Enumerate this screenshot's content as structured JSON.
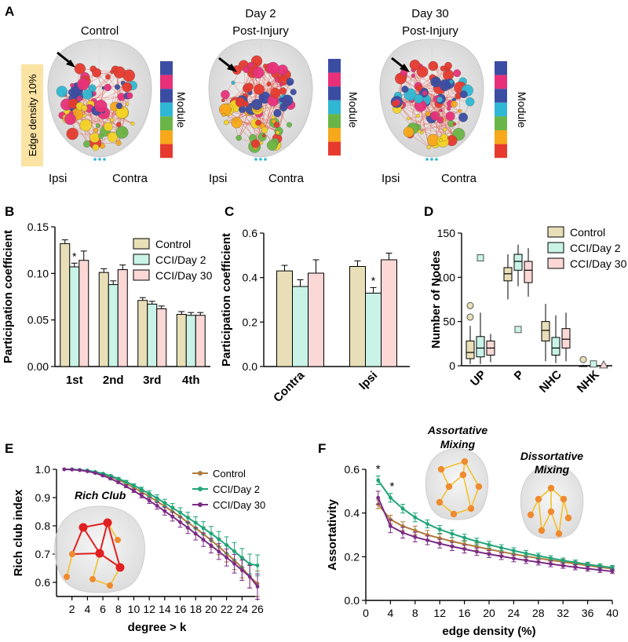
{
  "colors": {
    "control": "#e8dfb8",
    "cci_day2": "#c9f3e6",
    "cci_day30": "#fbd7d6",
    "control_line": "#b07a3a",
    "cci_day2_line": "#1fa57a",
    "cci_day30_line": "#7b2b86",
    "module": [
      "#e63a2e",
      "#f7a81b",
      "#f3d324",
      "#6ab547",
      "#2fb7d3",
      "#3b4ca3",
      "#e8307a"
    ],
    "edge_density_box": "#fbe3a3"
  },
  "panel_a": {
    "panel_label": "A",
    "title_control": "Control",
    "title_day2_line1": "Day 2",
    "title_day2_line2": "Post-Injury",
    "title_day30_line1": "Day 30",
    "title_day30_line2": "Post-Injury",
    "edge_density_label": "Edge density 10%",
    "module_label": "Module",
    "ipsi_label": "Ipsi",
    "contra_label": "Contra"
  },
  "chart_data": [
    {
      "panel": "B",
      "type": "bar",
      "ylabel": "Participation coefficient",
      "ylim": [
        0,
        0.15
      ],
      "yticks": [
        "0.00",
        "0.05",
        "0.10",
        "0.15"
      ],
      "categories": [
        "1st",
        "2nd",
        "3rd",
        "4th"
      ],
      "series": [
        {
          "name": "Control",
          "values": [
            0.132,
            0.101,
            0.071,
            0.056
          ],
          "errors": [
            0.004,
            0.004,
            0.003,
            0.003
          ]
        },
        {
          "name": "CCI/Day 2",
          "values": [
            0.107,
            0.088,
            0.067,
            0.055
          ],
          "errors": [
            0.004,
            0.004,
            0.003,
            0.003
          ]
        },
        {
          "name": "CCI/Day 30",
          "values": [
            0.114,
            0.104,
            0.062,
            0.055
          ],
          "errors": [
            0.01,
            0.005,
            0.003,
            0.003
          ]
        }
      ],
      "annotations": [
        {
          "text": "*",
          "category": "1st",
          "series": "CCI/Day 2"
        }
      ],
      "legend": "top-right"
    },
    {
      "panel": "C",
      "type": "bar",
      "ylabel": "Participation coefficient",
      "ylim": [
        0,
        0.6
      ],
      "yticks": [
        "0.0",
        "0.2",
        "0.4",
        "0.6"
      ],
      "categories": [
        "Contra",
        "Ipsi"
      ],
      "series": [
        {
          "name": "Control",
          "values": [
            0.43,
            0.45
          ],
          "errors": [
            0.025,
            0.025
          ]
        },
        {
          "name": "CCI/Day 2",
          "values": [
            0.36,
            0.33
          ],
          "errors": [
            0.03,
            0.025
          ]
        },
        {
          "name": "CCI/Day 30",
          "values": [
            0.42,
            0.48
          ],
          "errors": [
            0.06,
            0.03
          ]
        }
      ],
      "annotations": [
        {
          "text": "*",
          "category": "Ipsi",
          "series": "CCI/Day 2"
        }
      ]
    },
    {
      "panel": "D",
      "type": "box",
      "ylabel": "Number of Nodes",
      "ylim": [
        0,
        150
      ],
      "yticks": [
        "0",
        "50",
        "100",
        "150"
      ],
      "categories": [
        "UP",
        "P",
        "NHC",
        "NHK"
      ],
      "series": [
        {
          "name": "Control",
          "boxes": [
            {
              "min": 2,
              "q1": 8,
              "median": 15,
              "q3": 28,
              "max": 45,
              "outliers": [
                55,
                68
              ]
            },
            {
              "min": 75,
              "q1": 96,
              "median": 104,
              "q3": 111,
              "max": 126,
              "outliers": []
            },
            {
              "min": 5,
              "q1": 28,
              "median": 40,
              "q3": 50,
              "max": 70,
              "outliers": []
            },
            {
              "min": 0,
              "q1": 0,
              "median": 0,
              "q3": 0,
              "max": 1,
              "outliers": [
                7
              ]
            }
          ]
        },
        {
          "name": "CCI/Day 2",
          "boxes": [
            {
              "min": 2,
              "q1": 10,
              "median": 20,
              "q3": 33,
              "max": 60,
              "outliers": [
                122
              ]
            },
            {
              "min": 90,
              "q1": 108,
              "median": 118,
              "q3": 126,
              "max": 137,
              "outliers": [
                41
              ]
            },
            {
              "min": 3,
              "q1": 12,
              "median": 20,
              "q3": 32,
              "max": 57,
              "outliers": []
            },
            {
              "min": 0,
              "q1": 0,
              "median": 0,
              "q3": 0,
              "max": 0,
              "outliers": [
                2
              ]
            }
          ]
        },
        {
          "name": "CCI/Day 30",
          "boxes": [
            {
              "min": 4,
              "q1": 12,
              "median": 20,
              "q3": 28,
              "max": 36,
              "outliers": []
            },
            {
              "min": 78,
              "q1": 94,
              "median": 108,
              "q3": 118,
              "max": 133,
              "outliers": []
            },
            {
              "min": 5,
              "q1": 20,
              "median": 30,
              "q3": 42,
              "max": 60,
              "outliers": []
            },
            {
              "min": 0,
              "q1": 0,
              "median": 0,
              "q3": 0,
              "max": 1,
              "outliers": [
                1
              ]
            }
          ]
        }
      ],
      "legend": "top-right"
    },
    {
      "panel": "E",
      "type": "line",
      "xlabel": "degree  > k",
      "ylabel": "Rich club index",
      "xlim": [
        0,
        26
      ],
      "ylim": [
        0.55,
        1.0
      ],
      "xticks": [
        2,
        4,
        6,
        8,
        10,
        12,
        14,
        16,
        18,
        20,
        22,
        24,
        26
      ],
      "yticks": [
        "0.6",
        "0.7",
        "0.8",
        "0.9",
        "1.0"
      ],
      "x": [
        1,
        2,
        3,
        4,
        5,
        6,
        7,
        8,
        9,
        10,
        11,
        12,
        13,
        14,
        15,
        16,
        17,
        18,
        19,
        20,
        21,
        22,
        23,
        24,
        25,
        26
      ],
      "series": [
        {
          "name": "Control",
          "values": [
            1.0,
            1.0,
            0.998,
            0.995,
            0.99,
            0.983,
            0.974,
            0.963,
            0.95,
            0.935,
            0.92,
            0.904,
            0.887,
            0.869,
            0.851,
            0.832,
            0.812,
            0.792,
            0.771,
            0.749,
            0.726,
            0.702,
            0.678,
            0.652,
            0.62,
            0.595
          ],
          "errors": [
            0,
            0,
            0,
            0,
            0.001,
            0.002,
            0.003,
            0.004,
            0.005,
            0.006,
            0.008,
            0.01,
            0.012,
            0.014,
            0.016,
            0.018,
            0.02,
            0.022,
            0.024,
            0.026,
            0.028,
            0.03,
            0.033,
            0.036,
            0.04,
            0.045
          ]
        },
        {
          "name": "CCI/Day 2",
          "values": [
            1.0,
            1.0,
            0.998,
            0.996,
            0.991,
            0.985,
            0.977,
            0.967,
            0.956,
            0.943,
            0.929,
            0.914,
            0.898,
            0.881,
            0.864,
            0.847,
            0.829,
            0.811,
            0.792,
            0.773,
            0.753,
            0.732,
            0.71,
            0.687,
            0.665,
            0.66
          ],
          "errors": [
            0,
            0,
            0,
            0,
            0.001,
            0.002,
            0.003,
            0.004,
            0.005,
            0.006,
            0.008,
            0.01,
            0.012,
            0.013,
            0.015,
            0.017,
            0.019,
            0.021,
            0.023,
            0.025,
            0.027,
            0.029,
            0.031,
            0.033,
            0.035,
            0.037
          ]
        },
        {
          "name": "CCI/Day 30",
          "values": [
            1.0,
            0.999,
            0.997,
            0.993,
            0.987,
            0.978,
            0.967,
            0.954,
            0.94,
            0.924,
            0.907,
            0.889,
            0.871,
            0.852,
            0.833,
            0.813,
            0.793,
            0.772,
            0.751,
            0.73,
            0.709,
            0.688,
            0.666,
            0.643,
            0.62,
            0.585
          ],
          "errors": [
            0,
            0,
            0,
            0,
            0.001,
            0.002,
            0.003,
            0.004,
            0.005,
            0.006,
            0.008,
            0.01,
            0.012,
            0.014,
            0.016,
            0.018,
            0.02,
            0.022,
            0.024,
            0.026,
            0.028,
            0.03,
            0.033,
            0.036,
            0.04,
            0.045
          ]
        }
      ],
      "annotations": [
        {
          "text": "Rich Club"
        }
      ],
      "legend": "top-right"
    },
    {
      "panel": "F",
      "type": "line",
      "xlabel": "edge density (%)",
      "ylabel": "Assortativity",
      "xlim": [
        0,
        40
      ],
      "ylim": [
        0,
        0.6
      ],
      "xticks": [
        0,
        4,
        8,
        12,
        16,
        20,
        24,
        28,
        32,
        36,
        40
      ],
      "yticks": [
        "0.0",
        "0.2",
        "0.4",
        "0.6"
      ],
      "x": [
        2,
        4,
        6,
        8,
        10,
        12,
        14,
        16,
        18,
        20,
        22,
        24,
        26,
        28,
        30,
        32,
        34,
        36,
        38,
        40
      ],
      "series": [
        {
          "name": "Control",
          "values": [
            0.44,
            0.37,
            0.34,
            0.32,
            0.3,
            0.285,
            0.27,
            0.258,
            0.246,
            0.234,
            0.223,
            0.212,
            0.202,
            0.193,
            0.184,
            0.176,
            0.168,
            0.16,
            0.152,
            0.145
          ],
          "errors": [
            0.02,
            0.02,
            0.02,
            0.02,
            0.02,
            0.018,
            0.018,
            0.017,
            0.016,
            0.015,
            0.015,
            0.014,
            0.013,
            0.013,
            0.012,
            0.012,
            0.011,
            0.011,
            0.01,
            0.01
          ]
        },
        {
          "name": "CCI/Day 2",
          "values": [
            0.55,
            0.47,
            0.42,
            0.38,
            0.35,
            0.325,
            0.305,
            0.287,
            0.27,
            0.255,
            0.241,
            0.228,
            0.215,
            0.204,
            0.193,
            0.183,
            0.174,
            0.165,
            0.157,
            0.15
          ],
          "errors": [
            0.02,
            0.02,
            0.02,
            0.02,
            0.018,
            0.018,
            0.017,
            0.016,
            0.015,
            0.015,
            0.014,
            0.013,
            0.013,
            0.012,
            0.012,
            0.011,
            0.011,
            0.01,
            0.01,
            0.01
          ]
        },
        {
          "name": "CCI/Day 30",
          "values": [
            0.47,
            0.34,
            0.31,
            0.29,
            0.275,
            0.26,
            0.247,
            0.235,
            0.223,
            0.212,
            0.202,
            0.192,
            0.183,
            0.175,
            0.167,
            0.159,
            0.152,
            0.145,
            0.139,
            0.133
          ],
          "errors": [
            0.03,
            0.03,
            0.025,
            0.022,
            0.02,
            0.02,
            0.019,
            0.018,
            0.017,
            0.016,
            0.015,
            0.015,
            0.014,
            0.013,
            0.013,
            0.012,
            0.012,
            0.011,
            0.011,
            0.01
          ]
        }
      ],
      "annotations": [
        {
          "text": "*",
          "x": 2
        },
        {
          "text": "*",
          "x": 4
        },
        {
          "text": "Assortative"
        },
        {
          "text": "Mixing"
        },
        {
          "text": "Dissortative"
        },
        {
          "text": "Mixing"
        }
      ],
      "legend": "top-right"
    }
  ]
}
